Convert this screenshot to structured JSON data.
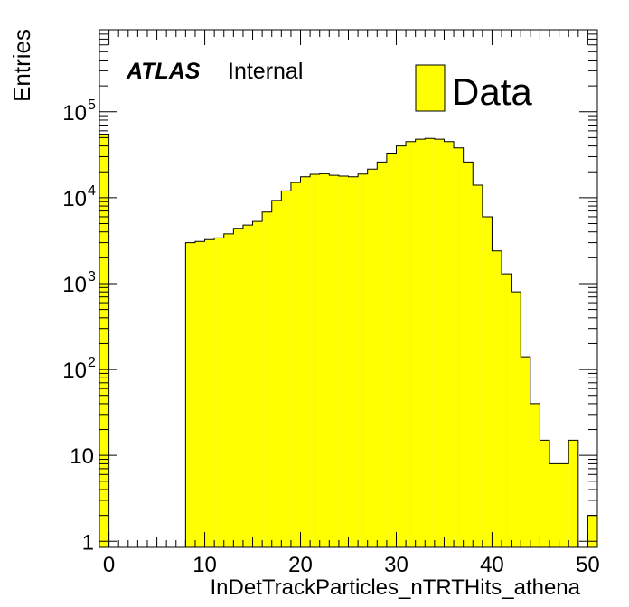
{
  "chart_data": {
    "type": "bar",
    "title": "",
    "xlabel": "InDetTrackParticles_nTRTHits_athena",
    "ylabel": "Entries",
    "x_range": [
      -1,
      51
    ],
    "bin_width": 1,
    "yscale": "log",
    "ylim": [
      0.85,
      900000
    ],
    "xticks_major": [
      0,
      10,
      20,
      30,
      40,
      50
    ],
    "xtick_labels": [
      "0",
      "10",
      "20",
      "30",
      "40",
      "50"
    ],
    "yticks_major": [
      {
        "value": 1,
        "base": "1",
        "exp": ""
      },
      {
        "value": 10,
        "base": "10",
        "exp": ""
      },
      {
        "value": 100,
        "base": "10",
        "exp": "2"
      },
      {
        "value": 1000,
        "base": "10",
        "exp": "3"
      },
      {
        "value": 10000,
        "base": "10",
        "exp": "4"
      },
      {
        "value": 100000,
        "base": "10",
        "exp": "5"
      }
    ],
    "bin_low_edges": [
      -1,
      0,
      1,
      2,
      3,
      4,
      5,
      6,
      7,
      8,
      9,
      10,
      11,
      12,
      13,
      14,
      15,
      16,
      17,
      18,
      19,
      20,
      21,
      22,
      23,
      24,
      25,
      26,
      27,
      28,
      29,
      30,
      31,
      32,
      33,
      34,
      35,
      36,
      37,
      38,
      39,
      40,
      41,
      42,
      43,
      44,
      45,
      46,
      47,
      48,
      49,
      50
    ],
    "values": [
      55000,
      0,
      0,
      0,
      0,
      0,
      0,
      0,
      0,
      3000,
      3100,
      3250,
      3400,
      3800,
      4400,
      4800,
      5300,
      6800,
      9300,
      12000,
      15000,
      17500,
      18700,
      19000,
      18200,
      17800,
      17500,
      18800,
      21500,
      26000,
      33000,
      40000,
      45000,
      48000,
      49000,
      48000,
      45000,
      38000,
      26000,
      14000,
      6000,
      2400,
      1300,
      800,
      140,
      40,
      15,
      8,
      8,
      15,
      0,
      2
    ],
    "series": [
      {
        "name": "Data",
        "color": "#ffff00",
        "edge_color": "#000000"
      }
    ],
    "legend_placement": "top-right",
    "grid": false,
    "annotations": {
      "atlas_label": "ATLAS",
      "atlas_status": "Internal"
    }
  }
}
